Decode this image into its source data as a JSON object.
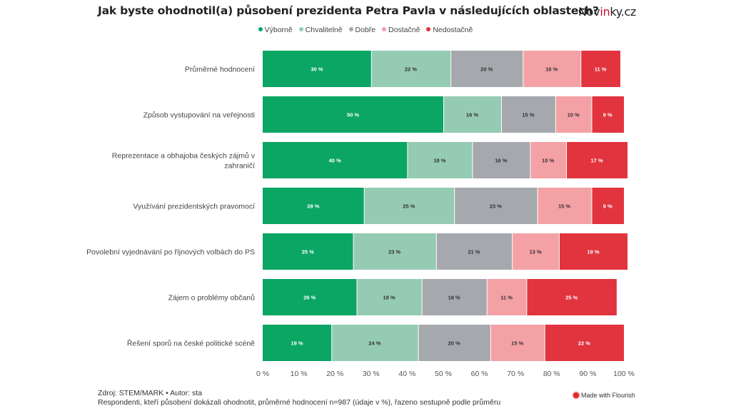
{
  "header": {
    "title": "Jak byste ohodnotil(a) působení prezidenta Petra Pavla v následujících oblastech?",
    "brand_prefix": "Nov",
    "brand_accent": "in",
    "brand_suffix": "ky.cz"
  },
  "legend": [
    {
      "label": "Výborně",
      "color": "#0ba564"
    },
    {
      "label": "Chvalitelně",
      "color": "#95cbb2"
    },
    {
      "label": "Dobře",
      "color": "#a5a8ad"
    },
    {
      "label": "Dostačně",
      "color": "#f4a1a6"
    },
    {
      "label": "Nedostačně",
      "color": "#e1343f"
    }
  ],
  "chart_data": {
    "type": "bar",
    "orientation": "horizontal",
    "stacked": true,
    "title": "Jak byste ohodnotil(a) působení prezidenta Petra Pavla v následujících oblastech?",
    "xlabel": "",
    "ylabel": "",
    "xlim": [
      0,
      100
    ],
    "xticks": [
      "0 %",
      "10 %",
      "20 %",
      "30 %",
      "40 %",
      "50 %",
      "60 %",
      "70 %",
      "80 %",
      "90 %",
      "100 %"
    ],
    "legend_position": "top-center",
    "categories": [
      [
        "Průměrné hodnocení"
      ],
      [
        "Způsob vystupování na veřejnosti"
      ],
      [
        "Reprezentace a obhajoba českých zájmů v",
        "zahraničí"
      ],
      [
        "Využívání prezidentských pravomocí"
      ],
      [
        "Povolební vyjednávání po říjnových volbách do PS"
      ],
      [
        "Zájem o problémy občanů"
      ],
      [
        "Řešení sporů na české politické scéně"
      ]
    ],
    "series": [
      {
        "name": "Výborně",
        "color": "#0ba564",
        "label_color": "#ffffff",
        "values": [
          30,
          50,
          40,
          28,
          25,
          26,
          19
        ]
      },
      {
        "name": "Chvalitelně",
        "color": "#95cbb2",
        "label_color": "#333333",
        "values": [
          22,
          16,
          18,
          25,
          23,
          18,
          24
        ]
      },
      {
        "name": "Dobře",
        "color": "#a5a8ad",
        "label_color": "#333333",
        "values": [
          20,
          15,
          16,
          23,
          21,
          18,
          20
        ]
      },
      {
        "name": "Dostačně",
        "color": "#f4a1a6",
        "label_color": "#333333",
        "values": [
          16,
          10,
          10,
          15,
          13,
          11,
          15
        ]
      },
      {
        "name": "Nedostačně",
        "color": "#e1343f",
        "label_color": "#ffffff",
        "values": [
          11,
          9,
          17,
          9,
          19,
          25,
          22
        ]
      }
    ],
    "value_suffix": " %"
  },
  "footer": {
    "source": "Zdroj: STEM/MARK • Autor: sta",
    "note": "Respondenti, kteří působení dokázali ohodnotit, průměrné hodnocení n=987 (údaje v %), řazeno sestupně podle průměru",
    "made_with": "Made with Flourish"
  }
}
